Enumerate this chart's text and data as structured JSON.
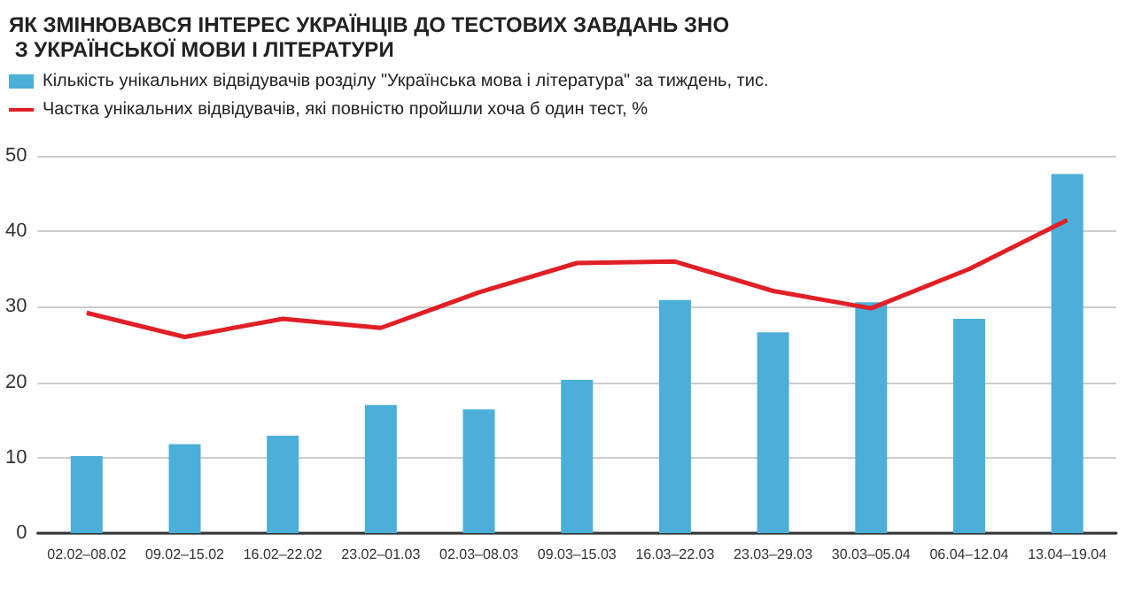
{
  "chart_data": {
    "type": "bar",
    "title": "ЯК ЗМІНЮВАВСЯ ІНТЕРЕС УКРАЇНЦІВ ДО ТЕСТОВИХ ЗАВДАНЬ ЗНО З УКРАЇНСЬКОЇ МОВИ І ЛІТЕРАТУРИ",
    "categories": [
      "02.02–08.02",
      "09.02–15.02",
      "16.02–22.02",
      "23.02–01.03",
      "02.03–08.03",
      "09.03–15.03",
      "16.03–22.03",
      "23.03–29.03",
      "30.03–05.04",
      "06.04–12.04",
      "13.04–19.04"
    ],
    "series": [
      {
        "name": "Кількість унікальних відвідувачів розділу \"Українська мова і література\" за тиждень, тис.",
        "color": "#4bafd9",
        "values": [
          10.2,
          11.8,
          12.9,
          17,
          16.4,
          20.3,
          30.9,
          26.6,
          30.6,
          28.4,
          47.6
        ]
      },
      {
        "name": "Частка унікальних відвідувачів, які повністю пройшли хоча б один тест, %",
        "type": "line",
        "color": "#e11f26",
        "values": [
          29.2,
          26,
          28.4,
          27.2,
          31.9,
          35.8,
          36,
          32.1,
          29.8,
          35,
          41.5
        ]
      }
    ],
    "ylim": [
      0,
      50
    ],
    "yticks": [
      0,
      10,
      20,
      30,
      40,
      50
    ],
    "grid": "y",
    "legend": "top left",
    "marker": "none"
  }
}
